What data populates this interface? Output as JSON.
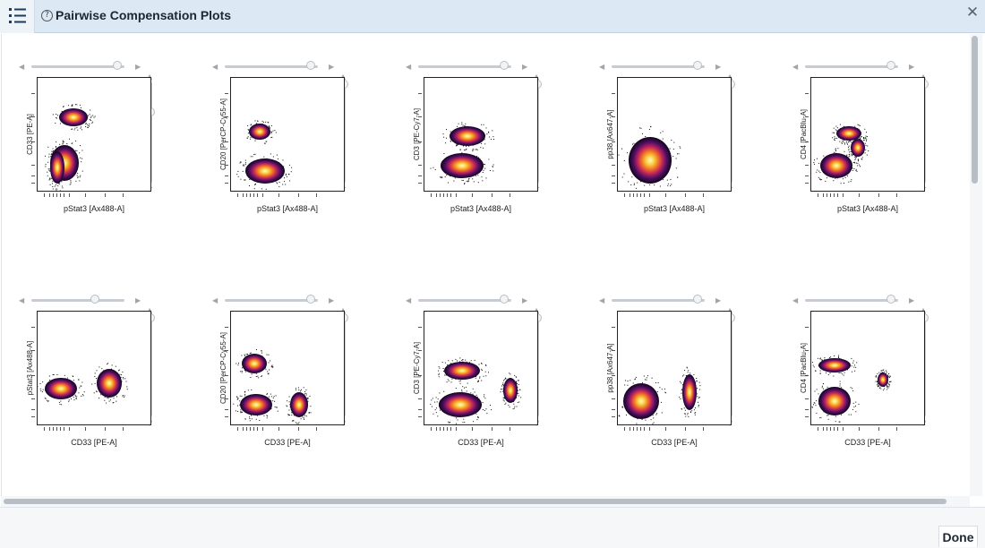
{
  "window": {
    "title": "Pairwise Compensation Plots",
    "done_label": "Done",
    "close_label": "✕"
  },
  "plots": [
    {
      "x": "pStat3 [Ax488-A]",
      "y": "CD33 [PE-A]",
      "hslider": 0.92,
      "vslider": 0.28
    },
    {
      "x": "pStat3 [Ax488-A]",
      "y": "CD20 [PerCP-Cy55-A]",
      "hslider": 0.92,
      "vslider": 0.0
    },
    {
      "x": "pStat3 [Ax488-A]",
      "y": "CD3 [PE-Cy7-A]",
      "hslider": 0.92,
      "vslider": 0.0
    },
    {
      "x": "pStat3 [Ax488-A]",
      "y": "pp38 [Ax647-A]",
      "hslider": 0.92,
      "vslider": 0.0
    },
    {
      "x": "pStat3 [Ax488-A]",
      "y": "CD4 [PacBlu-A]",
      "hslider": 0.92,
      "vslider": 0.0
    },
    {
      "x": "CD33 [PE-A]",
      "y": "pStat3 [Ax488-A]",
      "hslider": 0.68,
      "vslider": 0.0
    },
    {
      "x": "CD33 [PE-A]",
      "y": "CD20 [PerCP-Cy55-A]",
      "hslider": 0.92,
      "vslider": 0.0
    },
    {
      "x": "CD33 [PE-A]",
      "y": "CD3 [PE-Cy7-A]",
      "hslider": 0.92,
      "vslider": 0.0
    },
    {
      "x": "CD33 [PE-A]",
      "y": "pp38 [Ax647-A]",
      "hslider": 0.92,
      "vslider": 0.0
    },
    {
      "x": "CD33 [PE-A]",
      "y": "CD4 [PacBlu-A]",
      "hslider": 0.92,
      "vslider": 0.0
    }
  ]
}
